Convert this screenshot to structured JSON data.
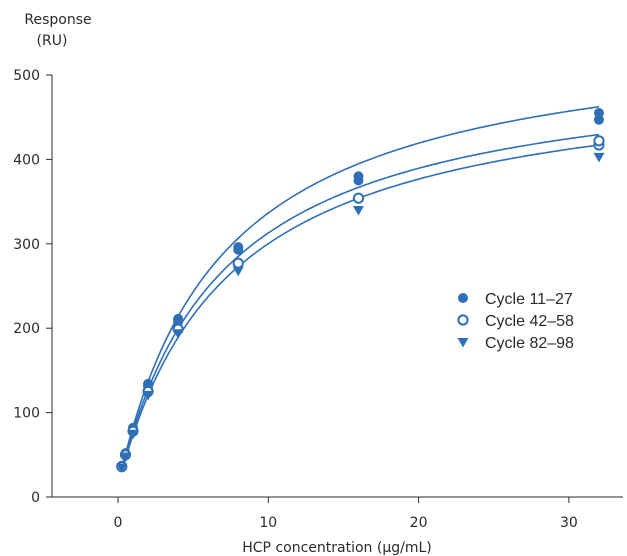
{
  "chart_data": {
    "type": "scatter",
    "title": "",
    "ylabel_line1": "Response",
    "ylabel_line2": "(RU)",
    "xlabel": "HCP concentration (µg/mL)",
    "xlim": [
      -4.5,
      34
    ],
    "ylim": [
      0,
      500
    ],
    "xticks": [
      0,
      10,
      20,
      30
    ],
    "yticks": [
      0,
      100,
      200,
      300,
      400,
      500
    ],
    "grid": false,
    "legend_position": "right-middle",
    "series_color": "#2e6fb5",
    "series": [
      {
        "name": "Cycle 11–27",
        "marker": "filled-circle",
        "fit": {
          "rmax": 545,
          "kd": 6.9,
          "offset": 14
        },
        "x": [
          0.25,
          0.25,
          0.5,
          0.5,
          1,
          1,
          2,
          2,
          4,
          4,
          8,
          8,
          16,
          16,
          32,
          32
        ],
        "y": [
          36,
          37,
          51,
          52,
          80,
          82,
          131,
          134,
          208,
          211,
          293,
          296,
          375,
          380,
          447,
          455
        ]
      },
      {
        "name": "Cycle 42–58",
        "marker": "open-circle",
        "fit": {
          "rmax": 505,
          "kd": 6.9,
          "offset": 14
        },
        "x": [
          0.25,
          0.5,
          1,
          2,
          4,
          8,
          16,
          32,
          32
        ],
        "y": [
          36,
          50,
          78,
          125,
          199,
          277,
          354,
          417,
          422
        ]
      },
      {
        "name": "Cycle 82–98",
        "marker": "triangle-down",
        "fit": {
          "rmax": 495,
          "kd": 7.3,
          "offset": 14
        },
        "x": [
          0.25,
          0.5,
          1,
          2,
          4,
          8,
          16,
          32
        ],
        "y": [
          35,
          48,
          75,
          121,
          194,
          268,
          340,
          403
        ]
      }
    ]
  }
}
